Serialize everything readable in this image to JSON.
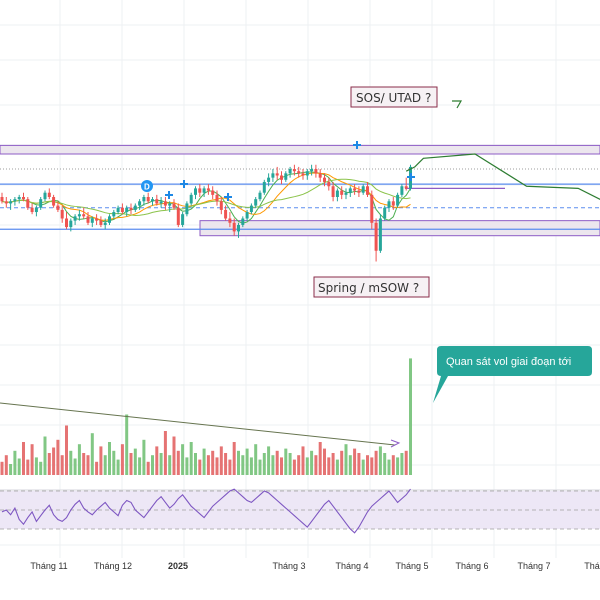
{
  "chart_data": {
    "type": "candlestick",
    "title": "",
    "price_panel": {
      "grid": true,
      "y_levels": {
        "resistance_top": 104,
        "resistance_bottom": 100,
        "dotted_high": 93,
        "range_top": 86,
        "range_mid": 75,
        "range_bottom": 65,
        "support_top": 69,
        "support_bottom": 62
      },
      "candles": [
        [
          80,
          82,
          77,
          78
        ],
        [
          78,
          80,
          75,
          77
        ],
        [
          77,
          79,
          74,
          78
        ],
        [
          78,
          80,
          76,
          79
        ],
        [
          79,
          81,
          77,
          80
        ],
        [
          80,
          82,
          78,
          79
        ],
        [
          79,
          80,
          74,
          75
        ],
        [
          75,
          77,
          72,
          73
        ],
        [
          73,
          76,
          71,
          75
        ],
        [
          75,
          80,
          74,
          79
        ],
        [
          79,
          83,
          78,
          82
        ],
        [
          82,
          84,
          79,
          80
        ],
        [
          80,
          81,
          75,
          76
        ],
        [
          76,
          78,
          73,
          74
        ],
        [
          74,
          76,
          68,
          70
        ],
        [
          70,
          73,
          65,
          66
        ],
        [
          66,
          70,
          64,
          69
        ],
        [
          69,
          72,
          67,
          71
        ],
        [
          71,
          74,
          69,
          72
        ],
        [
          72,
          75,
          70,
          71
        ],
        [
          71,
          73,
          67,
          68
        ],
        [
          68,
          71,
          66,
          70
        ],
        [
          70,
          72,
          67,
          69
        ],
        [
          69,
          71,
          66,
          67
        ],
        [
          67,
          70,
          65,
          68
        ],
        [
          68,
          72,
          67,
          71
        ],
        [
          71,
          74,
          70,
          73
        ],
        [
          73,
          76,
          72,
          75
        ],
        [
          75,
          77,
          72,
          73
        ],
        [
          73,
          76,
          71,
          75
        ],
        [
          75,
          77,
          72,
          74
        ],
        [
          74,
          77,
          73,
          76
        ],
        [
          76,
          79,
          74,
          78
        ],
        [
          78,
          81,
          76,
          80
        ],
        [
          80,
          82,
          77,
          78
        ],
        [
          78,
          80,
          76,
          79
        ],
        [
          79,
          81,
          76,
          77
        ],
        [
          77,
          80,
          75,
          78
        ],
        [
          78,
          80,
          74,
          76
        ],
        [
          76,
          78,
          73,
          77
        ],
        [
          77,
          79,
          74,
          75
        ],
        [
          75,
          77,
          66,
          67
        ],
        [
          67,
          73,
          66,
          72
        ],
        [
          72,
          78,
          71,
          77
        ],
        [
          77,
          82,
          76,
          81
        ],
        [
          81,
          85,
          79,
          84
        ],
        [
          84,
          86,
          80,
          82
        ],
        [
          82,
          85,
          80,
          84
        ],
        [
          84,
          86,
          81,
          83
        ],
        [
          83,
          85,
          79,
          81
        ],
        [
          81,
          83,
          76,
          78
        ],
        [
          78,
          80,
          72,
          74
        ],
        [
          74,
          76,
          69,
          70
        ],
        [
          70,
          73,
          66,
          68
        ],
        [
          68,
          70,
          62,
          64
        ],
        [
          64,
          68,
          61,
          67
        ],
        [
          67,
          71,
          66,
          70
        ],
        [
          70,
          74,
          69,
          73
        ],
        [
          73,
          77,
          72,
          76
        ],
        [
          76,
          80,
          75,
          79
        ],
        [
          79,
          83,
          78,
          82
        ],
        [
          82,
          88,
          81,
          87
        ],
        [
          87,
          91,
          85,
          89
        ],
        [
          89,
          93,
          87,
          91
        ],
        [
          91,
          94,
          88,
          90
        ],
        [
          90,
          92,
          86,
          88
        ],
        [
          88,
          92,
          87,
          91
        ],
        [
          91,
          94,
          89,
          93
        ],
        [
          93,
          95,
          90,
          92
        ],
        [
          92,
          94,
          89,
          91
        ],
        [
          91,
          93,
          88,
          90
        ],
        [
          90,
          93,
          88,
          92
        ],
        [
          92,
          95,
          90,
          93
        ],
        [
          93,
          95,
          89,
          91
        ],
        [
          91,
          93,
          87,
          89
        ],
        [
          89,
          91,
          85,
          87
        ],
        [
          87,
          89,
          83,
          85
        ],
        [
          85,
          87,
          78,
          80
        ],
        [
          80,
          84,
          78,
          83
        ],
        [
          83,
          85,
          79,
          81
        ],
        [
          81,
          84,
          79,
          82
        ],
        [
          82,
          85,
          80,
          84
        ],
        [
          84,
          86,
          81,
          83
        ],
        [
          83,
          85,
          80,
          82
        ],
        [
          82,
          86,
          81,
          85
        ],
        [
          85,
          87,
          80,
          81
        ],
        [
          81,
          83,
          65,
          68
        ],
        [
          68,
          70,
          50,
          55
        ],
        [
          55,
          72,
          54,
          70
        ],
        [
          70,
          76,
          69,
          75
        ],
        [
          75,
          79,
          73,
          78
        ],
        [
          78,
          80,
          74,
          76
        ],
        [
          76,
          82,
          75,
          81
        ],
        [
          81,
          86,
          80,
          85
        ],
        [
          85,
          89,
          83,
          84
        ],
        [
          84,
          95,
          83,
          94
        ]
      ],
      "projection": [
        [
          94,
          92
        ],
        [
          96,
          94
        ],
        [
          97,
          96
        ],
        [
          98,
          98
        ],
        [
          110,
          100
        ],
        [
          122,
          85
        ],
        [
          134,
          84
        ],
        [
          150,
          68
        ],
        [
          165,
          88
        ],
        [
          182,
          86
        ]
      ]
    },
    "volume_panel": {
      "values": [
        12,
        18,
        10,
        22,
        15,
        30,
        14,
        28,
        16,
        12,
        35,
        20,
        25,
        32,
        18,
        45,
        22,
        15,
        28,
        20,
        18,
        38,
        12,
        26,
        18,
        30,
        22,
        14,
        28,
        55,
        20,
        24,
        16,
        32,
        12,
        18,
        26,
        20,
        40,
        18,
        35,
        22,
        28,
        16,
        30,
        20,
        14,
        24,
        18,
        22,
        16,
        26,
        20,
        14,
        30,
        22,
        18,
        24,
        16,
        28,
        14,
        20,
        26,
        18,
        22,
        16,
        24,
        20,
        14,
        18,
        26,
        16,
        22,
        18,
        30,
        24,
        16,
        20,
        14,
        22,
        28,
        18,
        24,
        20,
        14,
        18,
        16,
        22,
        26,
        20,
        14,
        18,
        16,
        20,
        22,
        110
      ],
      "trend_line": [
        [
          0,
          60
        ],
        [
          395,
          15
        ]
      ]
    },
    "rsi_panel": {
      "levels": [
        70,
        50,
        30
      ],
      "values": [
        48,
        50,
        45,
        52,
        40,
        35,
        42,
        48,
        38,
        44,
        50,
        55,
        45,
        40,
        38,
        42,
        50,
        56,
        60,
        52,
        48,
        45,
        50,
        54,
        58,
        52,
        48,
        44,
        55,
        60,
        58,
        50,
        46,
        42,
        48,
        54,
        60,
        64,
        58,
        52,
        56,
        62,
        66,
        60,
        54,
        50,
        46,
        42,
        48,
        54,
        58,
        62,
        66,
        70,
        72,
        68,
        64,
        60,
        58,
        62,
        66,
        70,
        68,
        64,
        60,
        56,
        52,
        48,
        44,
        40,
        36,
        32,
        38,
        44,
        50,
        56,
        60,
        54,
        48,
        42,
        36,
        30,
        26,
        32,
        40,
        48,
        54,
        58,
        62,
        66,
        70,
        64,
        58,
        62,
        66,
        72
      ]
    },
    "x_axis": {
      "tick_labels": [
        "Tháng 11",
        "Tháng 12",
        "2025",
        "Tháng 3",
        "Tháng 4",
        "Tháng 5",
        "Tháng 6",
        "Tháng 7",
        "Thá"
      ]
    },
    "annotations": {
      "top_label": "SOS/ UTAD ?",
      "bottom_label": "Spring / mSOW ?",
      "note": "Quan sát vol giai đoạn tới",
      "badge": "D"
    },
    "colors": {
      "up": "#26a69a",
      "down": "#ef5350",
      "range_line": "#5b8def",
      "zone_border": "#8e5cc6",
      "zone_fill": "#ece6ee",
      "rsi_line": "#7e57c2",
      "rsi_band": "#ede7f6",
      "projection": "#2e7d32",
      "ma_green": "#4caf50",
      "ma_orange": "#ff9800",
      "ma_olive": "#8bc34a",
      "note_bg": "#26a69a"
    }
  }
}
